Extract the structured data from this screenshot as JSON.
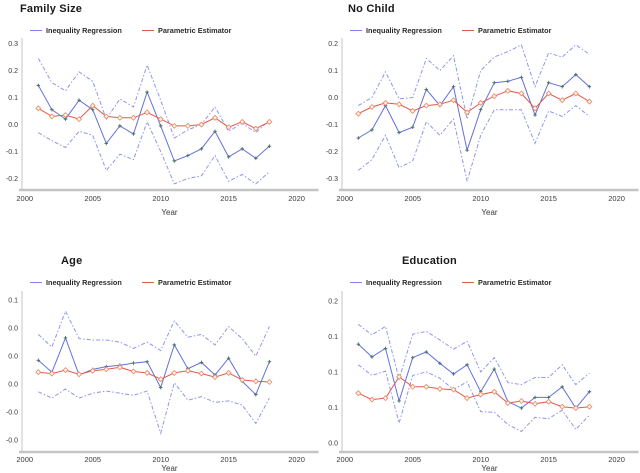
{
  "figure": {
    "type": "2x2 line chart panel figure",
    "x_axis_label": "Year"
  },
  "colors": {
    "inequality_line": "#6470dd",
    "parametric_line": "#e2584a",
    "ci_line": "#8d96ea",
    "marker_cross": "#44705f",
    "marker_diamond_stroke": "#ea9070",
    "marker_diamond_fill": "#fff6ee",
    "axis_line": "#c4c4c4",
    "y_axis_line": "#cfcfcf",
    "title_text": "#1a1a1a",
    "tick_text": "#3a3a3a"
  },
  "chart_data": [
    {
      "type": "line",
      "title": "Family Size",
      "xlabel": "Year",
      "legend": [
        "Inequality Regression",
        "Parametric Estimator"
      ],
      "xlim": [
        1999.8,
        2021.5
      ],
      "ylim": [
        -0.235,
        0.313
      ],
      "x_ticks": [
        {
          "label": "2000",
          "value": 2000
        },
        {
          "label": "2005",
          "value": 2005
        },
        {
          "label": "2010",
          "value": 2010
        },
        {
          "label": "2015",
          "value": 2015
        },
        {
          "label": "2020",
          "value": 2020
        }
      ],
      "y_ticks": [
        {
          "label": "0.3",
          "value": 0.3
        },
        {
          "label": "0.2",
          "value": 0.2
        },
        {
          "label": "0.1",
          "value": 0.1
        },
        {
          "label": "0.0",
          "value": 0.0
        },
        {
          "label": "-0.1",
          "value": -0.1
        },
        {
          "label": "-0.2",
          "value": -0.2
        }
      ],
      "years": [
        2001,
        2002,
        2003,
        2004,
        2005,
        2006,
        2007,
        2008,
        2009,
        2010,
        2011,
        2012,
        2013,
        2014,
        2015,
        2016,
        2017,
        2018
      ],
      "series": [
        {
          "name": "Inequality Regression",
          "role": "estimate",
          "values": [
            0.145,
            0.055,
            0.02,
            0.09,
            0.055,
            -0.07,
            -0.005,
            -0.035,
            0.12,
            -0.005,
            -0.135,
            -0.115,
            -0.09,
            -0.025,
            -0.12,
            -0.09,
            -0.125,
            -0.08
          ]
        },
        {
          "name": "Parametric Estimator",
          "role": "estimate",
          "values": [
            0.06,
            0.03,
            0.035,
            0.02,
            0.07,
            0.03,
            0.025,
            0.025,
            0.045,
            0.02,
            -0.005,
            -0.005,
            0.0,
            0.025,
            -0.01,
            0.01,
            -0.015,
            0.01
          ]
        },
        {
          "name": "CI upper",
          "role": "ci",
          "values": [
            0.245,
            0.155,
            0.125,
            0.195,
            0.16,
            0.02,
            0.095,
            0.065,
            0.22,
            0.09,
            -0.05,
            -0.02,
            0.0,
            0.065,
            -0.025,
            0.005,
            -0.03,
            0.015
          ]
        },
        {
          "name": "CI lower",
          "role": "ci",
          "values": [
            -0.03,
            -0.06,
            -0.085,
            -0.025,
            -0.04,
            -0.17,
            -0.11,
            -0.13,
            0.01,
            -0.1,
            -0.22,
            -0.2,
            -0.19,
            -0.115,
            -0.21,
            -0.185,
            -0.22,
            -0.175
          ]
        }
      ]
    },
    {
      "type": "line",
      "title": "No Child",
      "xlabel": "Year",
      "legend": [
        "Inequality Regression",
        "Parametric Estimator"
      ],
      "xlim": [
        1999.8,
        2021.5
      ],
      "ylim": [
        -0.335,
        0.213
      ],
      "x_ticks": [
        {
          "label": "2000",
          "value": 2000
        },
        {
          "label": "2005",
          "value": 2005
        },
        {
          "label": "2010",
          "value": 2010
        },
        {
          "label": "2015",
          "value": 2015
        },
        {
          "label": "2020",
          "value": 2020
        }
      ],
      "y_ticks": [
        {
          "label": "0.2",
          "value": 0.2
        },
        {
          "label": "0.1",
          "value": 0.1
        },
        {
          "label": "0.0",
          "value": 0.0
        },
        {
          "label": "-0.1",
          "value": -0.1
        },
        {
          "label": "-0.2",
          "value": -0.2
        },
        {
          "label": "-0.3",
          "value": -0.3
        }
      ],
      "years": [
        2001,
        2002,
        2003,
        2004,
        2005,
        2006,
        2007,
        2008,
        2009,
        2010,
        2011,
        2012,
        2013,
        2014,
        2015,
        2016,
        2017,
        2018
      ],
      "series": [
        {
          "name": "Inequality Regression",
          "role": "estimate",
          "values": [
            -0.15,
            -0.12,
            -0.03,
            -0.13,
            -0.11,
            0.03,
            -0.03,
            0.04,
            -0.195,
            -0.045,
            0.055,
            0.06,
            0.075,
            -0.065,
            0.055,
            0.04,
            0.085,
            0.04
          ]
        },
        {
          "name": "Parametric Estimator",
          "role": "estimate",
          "values": [
            -0.06,
            -0.035,
            -0.02,
            -0.025,
            -0.05,
            -0.03,
            -0.025,
            -0.01,
            -0.055,
            -0.02,
            0.005,
            0.025,
            0.015,
            -0.04,
            0.015,
            -0.01,
            0.015,
            -0.015
          ]
        },
        {
          "name": "CI upper",
          "role": "ci",
          "values": [
            -0.03,
            0.0,
            0.095,
            -0.005,
            0.0,
            0.145,
            0.1,
            0.155,
            -0.08,
            0.1,
            0.15,
            0.17,
            0.195,
            0.04,
            0.165,
            0.15,
            0.195,
            0.16
          ]
        },
        {
          "name": "CI lower",
          "role": "ci",
          "values": [
            -0.27,
            -0.23,
            -0.14,
            -0.26,
            -0.235,
            -0.09,
            -0.14,
            -0.08,
            -0.31,
            -0.14,
            -0.045,
            -0.045,
            -0.045,
            -0.17,
            -0.05,
            -0.07,
            -0.03,
            -0.07
          ]
        }
      ]
    },
    {
      "type": "line",
      "title": "Age",
      "xlabel": "Year",
      "legend": [
        "Inequality Regression",
        "Parametric Estimator"
      ],
      "xlim": [
        1999.8,
        2021.5
      ],
      "ylim": [
        -0.114,
        0.11
      ],
      "x_ticks": [
        {
          "label": "2000",
          "value": 2000
        },
        {
          "label": "2005",
          "value": 2005
        },
        {
          "label": "2010",
          "value": 2010
        },
        {
          "label": "2015",
          "value": 2015
        },
        {
          "label": "2020",
          "value": 2020
        }
      ],
      "y_ticks": [
        {
          "label": "0.1",
          "value": 0.1
        },
        {
          "label": "0.0",
          "value": 0.06
        },
        {
          "label": "0.0",
          "value": 0.02
        },
        {
          "label": "0.0",
          "value": -0.02
        },
        {
          "label": "-0.0",
          "value": -0.06
        },
        {
          "label": "-0.0",
          "value": -0.1
        }
      ],
      "years": [
        2001,
        2002,
        2003,
        2004,
        2005,
        2006,
        2007,
        2008,
        2009,
        2010,
        2011,
        2012,
        2013,
        2014,
        2015,
        2016,
        2017,
        2018
      ],
      "series": [
        {
          "name": "Inequality Regression",
          "role": "estimate",
          "values": [
            0.014,
            -0.003,
            0.046,
            -0.007,
            0.001,
            0.005,
            0.007,
            0.01,
            0.012,
            -0.025,
            0.036,
            0.002,
            0.011,
            -0.007,
            0.017,
            -0.016,
            -0.035,
            0.012
          ]
        },
        {
          "name": "Parametric Estimator",
          "role": "estimate",
          "values": [
            -0.003,
            -0.005,
            0.0,
            -0.006,
            -0.001,
            0.001,
            0.004,
            -0.002,
            -0.004,
            -0.013,
            -0.004,
            -0.001,
            -0.005,
            -0.01,
            -0.004,
            -0.014,
            -0.016,
            -0.017
          ]
        },
        {
          "name": "CI upper",
          "role": "ci",
          "values": [
            0.051,
            0.033,
            0.084,
            0.045,
            0.043,
            0.043,
            0.04,
            0.031,
            0.04,
            0.028,
            0.07,
            0.047,
            0.051,
            0.036,
            0.062,
            0.045,
            0.02,
            0.062
          ]
        },
        {
          "name": "CI lower",
          "role": "ci",
          "values": [
            -0.031,
            -0.04,
            -0.027,
            -0.04,
            -0.033,
            -0.03,
            -0.033,
            -0.036,
            -0.03,
            -0.09,
            -0.018,
            -0.043,
            -0.038,
            -0.046,
            -0.044,
            -0.05,
            -0.076,
            -0.04
          ]
        }
      ]
    },
    {
      "type": "line",
      "title": "Education",
      "xlabel": "Year",
      "legend": [
        "Inequality Regression",
        "Parametric Estimator"
      ],
      "xlim": [
        1999.8,
        2021.5
      ],
      "ylim": [
        -0.01,
        0.211
      ],
      "x_ticks": [
        {
          "label": "2000",
          "value": 2000
        },
        {
          "label": "2005",
          "value": 2005
        },
        {
          "label": "2010",
          "value": 2010
        },
        {
          "label": "2015",
          "value": 2015
        },
        {
          "label": "2020",
          "value": 2020
        }
      ],
      "y_ticks": [
        {
          "label": "0.2",
          "value": 0.2
        },
        {
          "label": "0.1",
          "value": 0.15
        },
        {
          "label": "0.1",
          "value": 0.1
        },
        {
          "label": "0.1",
          "value": 0.05
        },
        {
          "label": "0.0",
          "value": 0.0
        }
      ],
      "years": [
        2001,
        2002,
        2003,
        2004,
        2005,
        2006,
        2007,
        2008,
        2009,
        2010,
        2011,
        2012,
        2013,
        2014,
        2015,
        2016,
        2017,
        2018
      ],
      "series": [
        {
          "name": "Inequality Regression",
          "role": "estimate",
          "values": [
            0.139,
            0.121,
            0.133,
            0.059,
            0.12,
            0.128,
            0.112,
            0.097,
            0.11,
            0.072,
            0.104,
            0.058,
            0.049,
            0.064,
            0.064,
            0.079,
            0.049,
            0.072
          ]
        },
        {
          "name": "Parametric Estimator",
          "role": "estimate",
          "values": [
            0.07,
            0.061,
            0.063,
            0.093,
            0.079,
            0.079,
            0.076,
            0.075,
            0.063,
            0.068,
            0.072,
            0.056,
            0.059,
            0.055,
            0.058,
            0.051,
            0.049,
            0.051
          ]
        },
        {
          "name": "CI upper",
          "role": "ci",
          "values": [
            0.167,
            0.152,
            0.164,
            0.09,
            0.153,
            0.157,
            0.145,
            0.132,
            0.143,
            0.1,
            0.12,
            0.085,
            0.082,
            0.092,
            0.092,
            0.11,
            0.082,
            0.098
          ]
        },
        {
          "name": "CI lower",
          "role": "ci",
          "values": [
            0.11,
            0.095,
            0.101,
            0.028,
            0.095,
            0.1,
            0.091,
            0.075,
            0.086,
            0.044,
            0.043,
            0.026,
            0.016,
            0.036,
            0.034,
            0.046,
            0.019,
            0.039
          ]
        }
      ]
    }
  ]
}
